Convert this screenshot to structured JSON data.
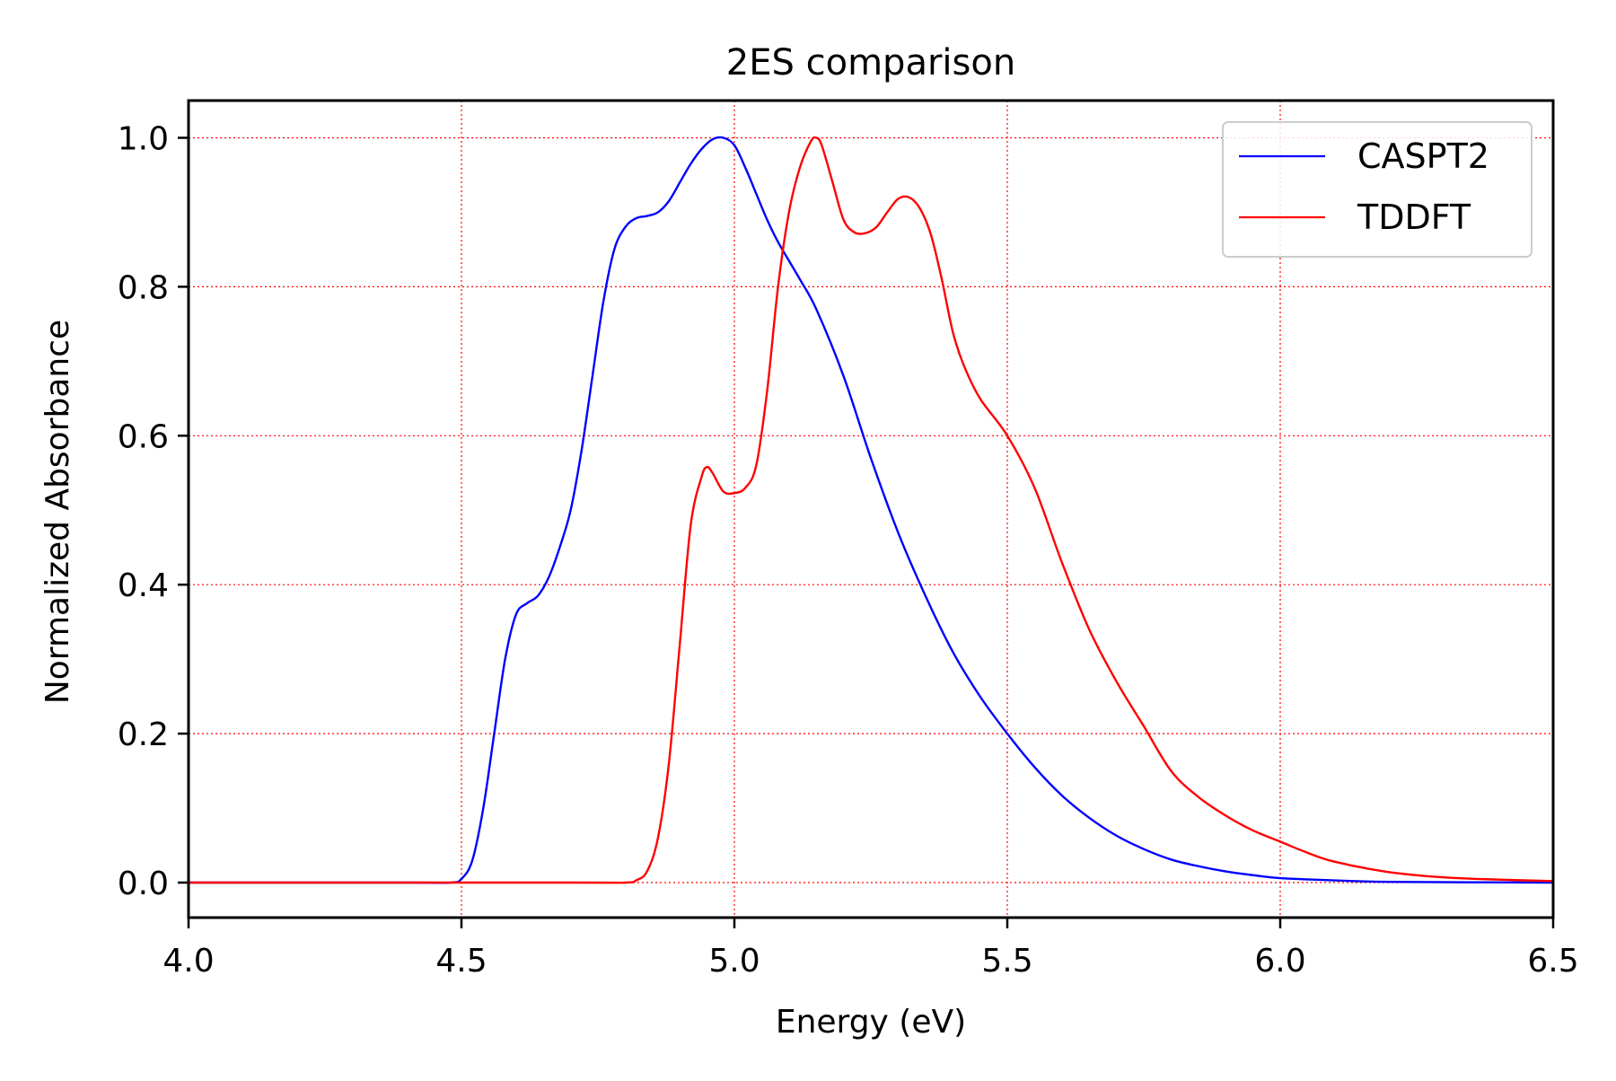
{
  "chart_data": {
    "type": "line",
    "title": "2ES comparison",
    "xlabel": "Energy (eV)",
    "ylabel": "Normalized Absorbance",
    "xlim": [
      4.0,
      6.5
    ],
    "ylim": [
      -0.047,
      1.05
    ],
    "xticks": [
      4.0,
      4.5,
      5.0,
      5.5,
      6.0,
      6.5
    ],
    "xtick_labels": [
      "4.0",
      "4.5",
      "5.0",
      "5.5",
      "6.0",
      "6.5"
    ],
    "yticks": [
      0.0,
      0.2,
      0.4,
      0.6,
      0.8,
      1.0
    ],
    "ytick_labels": [
      "0.0",
      "0.2",
      "0.4",
      "0.6",
      "0.8",
      "1.0"
    ],
    "grid": true,
    "grid_color": "#ff0000",
    "legend_position": "top-right",
    "series": [
      {
        "name": "CASPT2",
        "color": "#0000ff",
        "points": [
          [
            4.0,
            0.0
          ],
          [
            4.4,
            0.0
          ],
          [
            4.48,
            0.0
          ],
          [
            4.5,
            0.005
          ],
          [
            4.52,
            0.03
          ],
          [
            4.54,
            0.1
          ],
          [
            4.56,
            0.2
          ],
          [
            4.58,
            0.3
          ],
          [
            4.6,
            0.36
          ],
          [
            4.62,
            0.375
          ],
          [
            4.64,
            0.385
          ],
          [
            4.66,
            0.41
          ],
          [
            4.68,
            0.45
          ],
          [
            4.7,
            0.5
          ],
          [
            4.72,
            0.58
          ],
          [
            4.74,
            0.68
          ],
          [
            4.76,
            0.78
          ],
          [
            4.78,
            0.85
          ],
          [
            4.8,
            0.88
          ],
          [
            4.82,
            0.892
          ],
          [
            4.84,
            0.895
          ],
          [
            4.86,
            0.9
          ],
          [
            4.88,
            0.915
          ],
          [
            4.9,
            0.94
          ],
          [
            4.92,
            0.965
          ],
          [
            4.94,
            0.985
          ],
          [
            4.96,
            0.998
          ],
          [
            4.98,
            1.0
          ],
          [
            5.0,
            0.99
          ],
          [
            5.02,
            0.96
          ],
          [
            5.04,
            0.925
          ],
          [
            5.06,
            0.89
          ],
          [
            5.08,
            0.86
          ],
          [
            5.1,
            0.835
          ],
          [
            5.12,
            0.81
          ],
          [
            5.15,
            0.77
          ],
          [
            5.2,
            0.68
          ],
          [
            5.25,
            0.57
          ],
          [
            5.3,
            0.47
          ],
          [
            5.35,
            0.385
          ],
          [
            5.4,
            0.31
          ],
          [
            5.45,
            0.25
          ],
          [
            5.5,
            0.2
          ],
          [
            5.55,
            0.155
          ],
          [
            5.6,
            0.117
          ],
          [
            5.65,
            0.087
          ],
          [
            5.7,
            0.063
          ],
          [
            5.75,
            0.045
          ],
          [
            5.8,
            0.031
          ],
          [
            5.85,
            0.022
          ],
          [
            5.9,
            0.015
          ],
          [
            5.95,
            0.01
          ],
          [
            6.0,
            0.006
          ],
          [
            6.1,
            0.003
          ],
          [
            6.2,
            0.001
          ],
          [
            6.5,
            0.0
          ]
        ]
      },
      {
        "name": "TDDFT",
        "color": "#ff0000",
        "points": [
          [
            4.0,
            0.0
          ],
          [
            4.7,
            0.0
          ],
          [
            4.8,
            0.0
          ],
          [
            4.82,
            0.003
          ],
          [
            4.84,
            0.015
          ],
          [
            4.86,
            0.06
          ],
          [
            4.88,
            0.16
          ],
          [
            4.9,
            0.32
          ],
          [
            4.92,
            0.48
          ],
          [
            4.94,
            0.545
          ],
          [
            4.95,
            0.558
          ],
          [
            4.96,
            0.55
          ],
          [
            4.98,
            0.525
          ],
          [
            5.0,
            0.523
          ],
          [
            5.02,
            0.53
          ],
          [
            5.04,
            0.56
          ],
          [
            5.06,
            0.66
          ],
          [
            5.08,
            0.8
          ],
          [
            5.1,
            0.9
          ],
          [
            5.12,
            0.96
          ],
          [
            5.14,
            0.995
          ],
          [
            5.15,
            1.0
          ],
          [
            5.16,
            0.99
          ],
          [
            5.18,
            0.94
          ],
          [
            5.2,
            0.89
          ],
          [
            5.22,
            0.873
          ],
          [
            5.24,
            0.872
          ],
          [
            5.26,
            0.88
          ],
          [
            5.28,
            0.9
          ],
          [
            5.3,
            0.918
          ],
          [
            5.32,
            0.92
          ],
          [
            5.34,
            0.905
          ],
          [
            5.36,
            0.87
          ],
          [
            5.38,
            0.81
          ],
          [
            5.4,
            0.74
          ],
          [
            5.42,
            0.695
          ],
          [
            5.45,
            0.65
          ],
          [
            5.5,
            0.6
          ],
          [
            5.55,
            0.53
          ],
          [
            5.6,
            0.43
          ],
          [
            5.65,
            0.34
          ],
          [
            5.7,
            0.27
          ],
          [
            5.75,
            0.21
          ],
          [
            5.8,
            0.15
          ],
          [
            5.85,
            0.115
          ],
          [
            5.9,
            0.09
          ],
          [
            5.95,
            0.07
          ],
          [
            6.0,
            0.055
          ],
          [
            6.05,
            0.04
          ],
          [
            6.1,
            0.028
          ],
          [
            6.2,
            0.014
          ],
          [
            6.3,
            0.007
          ],
          [
            6.4,
            0.004
          ],
          [
            6.5,
            0.002
          ]
        ]
      }
    ]
  }
}
